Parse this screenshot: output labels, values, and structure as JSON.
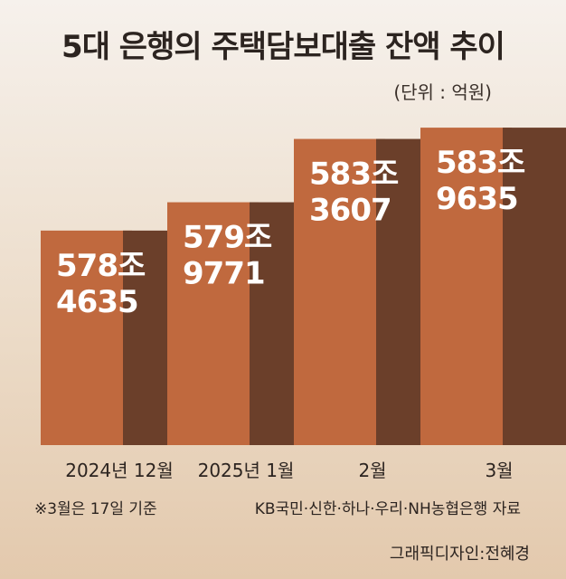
{
  "title": "5대 은행의 주택담보대출 잔액 추이",
  "unit": "(단위 : 억원)",
  "chart_data": {
    "type": "bar",
    "categories": [
      "2024년 12월",
      "2025년 1월",
      "2월",
      "3월"
    ],
    "values": [
      5784635,
      5799771,
      5833607,
      5839635
    ],
    "value_labels": [
      [
        "578조",
        "4635"
      ],
      [
        "579조",
        "9771"
      ],
      [
        "583조",
        "3607"
      ],
      [
        "583조",
        "9635"
      ]
    ],
    "colors": {
      "light": "#c0693e",
      "dark": "#6b3f2a"
    },
    "ylim": [
      5670000,
      5845000
    ]
  },
  "footnote": "※3월은 17일 기준",
  "source": "KB국민·신한·하나·우리·NH농협은행 자료",
  "credit": "그래픽디자인:전혜경"
}
